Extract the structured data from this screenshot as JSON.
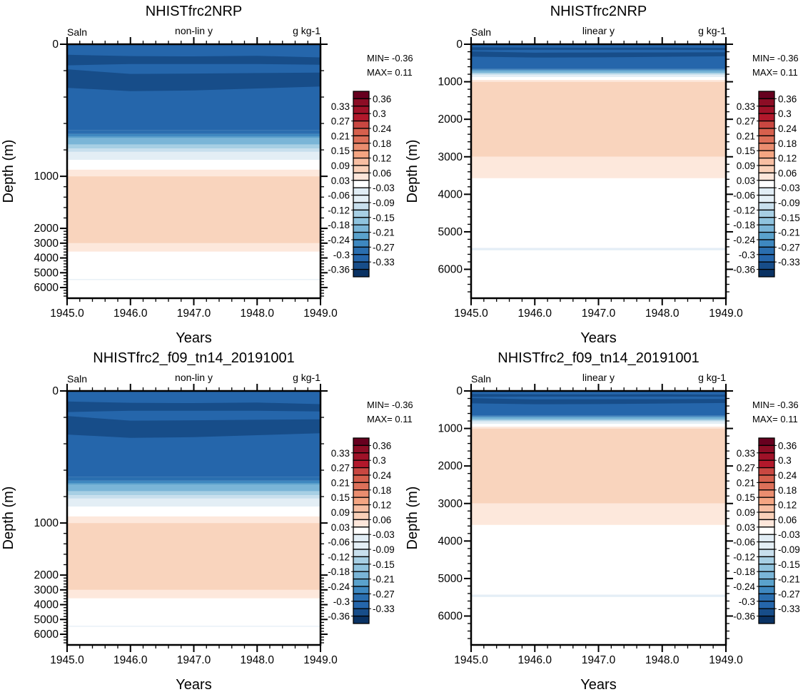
{
  "chart_data": {
    "type": "heatmap",
    "variable": "Saln",
    "units": "g kg-1",
    "xlabel": "Years",
    "ylabel": "Depth (m)",
    "xlim": [
      1945.0,
      1949.0
    ],
    "x_ticks": [
      "1945.0",
      "1946.0",
      "1947.0",
      "1948.0",
      "1949.0"
    ],
    "x_tick_values": [
      1945,
      1946,
      1947,
      1948,
      1949
    ],
    "ylim": [
      0,
      6750
    ],
    "y_ticks": [
      "0",
      "1000",
      "2000",
      "3000",
      "4000",
      "5000",
      "6000"
    ],
    "y_tick_values": [
      0,
      1000,
      2000,
      3000,
      4000,
      5000,
      6000
    ],
    "colorbar": {
      "labels": [
        "0.36",
        "0.33",
        "0.3",
        "0.27",
        "0.24",
        "0.21",
        "0.18",
        "0.15",
        "0.12",
        "0.09",
        "0.06",
        "0.03",
        "-0.03",
        "-0.06",
        "-0.09",
        "-0.12",
        "-0.15",
        "-0.18",
        "-0.21",
        "-0.24",
        "-0.27",
        "-0.3",
        "-0.33",
        "-0.36"
      ],
      "colors": [
        "#67001f",
        "#8c0d25",
        "#9f1228",
        "#b2182b",
        "#c94741",
        "#d6604d",
        "#dd7059",
        "#ea8d6f",
        "#f4a582",
        "#f7bea2",
        "#f9d0b8",
        "#fde6da",
        "#ffffff",
        "#e1edf5",
        "#e4eff6",
        "#c8dfed",
        "#a7cfe4",
        "#8fc3de",
        "#7ab5d7",
        "#5aa2cc",
        "#3e88c0",
        "#2a6eaf",
        "#2566ab",
        "#174d89",
        "#0a3263"
      ]
    },
    "contour_bands": [
      {
        "value": -0.315,
        "color": "#2566ab",
        "top": [
          0,
          0,
          0,
          0,
          0
        ],
        "bottom": [
          650,
          650,
          650,
          650,
          650
        ]
      },
      {
        "value": -0.345,
        "color": "#174d89",
        "top": [
          80,
          90,
          92,
          88,
          100
        ],
        "bottom": [
          160,
          150,
          150,
          150,
          155
        ]
      },
      {
        "value": -0.345,
        "color": "#174d89",
        "top": [
          190,
          225,
          222,
          218,
          215
        ],
        "bottom": [
          330,
          355,
          350,
          335,
          320
        ]
      },
      {
        "value": -0.285,
        "color": "#2a6eaf",
        "top": [
          650,
          650,
          650,
          650,
          650
        ],
        "bottom": [
          680,
          680,
          680,
          680,
          680
        ]
      },
      {
        "value": -0.255,
        "color": "#3e88c0",
        "top": [
          680,
          680,
          680,
          680,
          680
        ],
        "bottom": [
          700,
          700,
          700,
          700,
          700
        ]
      },
      {
        "value": -0.225,
        "color": "#5aa2cc",
        "top": [
          700,
          700,
          700,
          700,
          700
        ],
        "bottom": [
          712,
          712,
          712,
          712,
          712
        ]
      },
      {
        "value": -0.195,
        "color": "#7ab5d7",
        "top": [
          712,
          712,
          712,
          712,
          712
        ],
        "bottom": [
          760,
          760,
          760,
          760,
          760
        ]
      },
      {
        "value": -0.135,
        "color": "#a7cfe4",
        "top": [
          760,
          760,
          760,
          760,
          760
        ],
        "bottom": [
          790,
          790,
          790,
          790,
          790
        ]
      },
      {
        "value": -0.105,
        "color": "#c8dfed",
        "top": [
          790,
          790,
          790,
          790,
          790
        ],
        "bottom": [
          815,
          815,
          815,
          815,
          815
        ]
      },
      {
        "value": -0.075,
        "color": "#e3eef5",
        "top": [
          815,
          815,
          815,
          815,
          815
        ],
        "bottom": [
          875,
          875,
          875,
          875,
          875
        ]
      },
      {
        "value": 0.045,
        "color": "#fde8dc",
        "top": [
          950,
          950,
          950,
          950,
          950
        ],
        "bottom": [
          1000,
          1000,
          1000,
          1000,
          1000
        ]
      },
      {
        "value": 0.075,
        "color": "#f9d4bd",
        "top": [
          1000,
          1000,
          1000,
          1000,
          1000
        ],
        "bottom": [
          3000,
          3000,
          3000,
          3000,
          3000
        ]
      },
      {
        "value": 0.045,
        "color": "#fde8dc",
        "top": [
          3000,
          3000,
          3000,
          3000,
          3000
        ],
        "bottom": [
          3570,
          3570,
          3570,
          3570,
          3570
        ]
      },
      {
        "value": -0.045,
        "color": "#e4eef6",
        "top": [
          5430,
          5430,
          5430,
          5430,
          5430
        ],
        "bottom": [
          5490,
          5490,
          5490,
          5490,
          5490
        ]
      }
    ],
    "panels": [
      {
        "title": "NHISTfrc2NRP",
        "left": "Saln",
        "center": "non-lin y",
        "right": "g kg-1",
        "yscale": "nonlinear",
        "min_label": "MIN= -0.36",
        "max_label": "MAX=  0.11"
      },
      {
        "title": "NHISTfrc2NRP",
        "left": "Saln",
        "center": "linear y",
        "right": "g kg-1",
        "yscale": "linear",
        "min_label": "MIN= -0.36",
        "max_label": "MAX=  0.11"
      },
      {
        "title": "NHISTfrc2_f09_tn14_20191001",
        "left": "Saln",
        "center": "non-lin y",
        "right": "g kg-1",
        "yscale": "nonlinear",
        "min_label": "MIN= -0.36",
        "max_label": "MAX=  0.11"
      },
      {
        "title": "NHISTfrc2_f09_tn14_20191001",
        "left": "Saln",
        "center": "linear y",
        "right": "g kg-1",
        "yscale": "linear",
        "min_label": "MIN= -0.36",
        "max_label": "MAX=  0.11"
      }
    ]
  }
}
